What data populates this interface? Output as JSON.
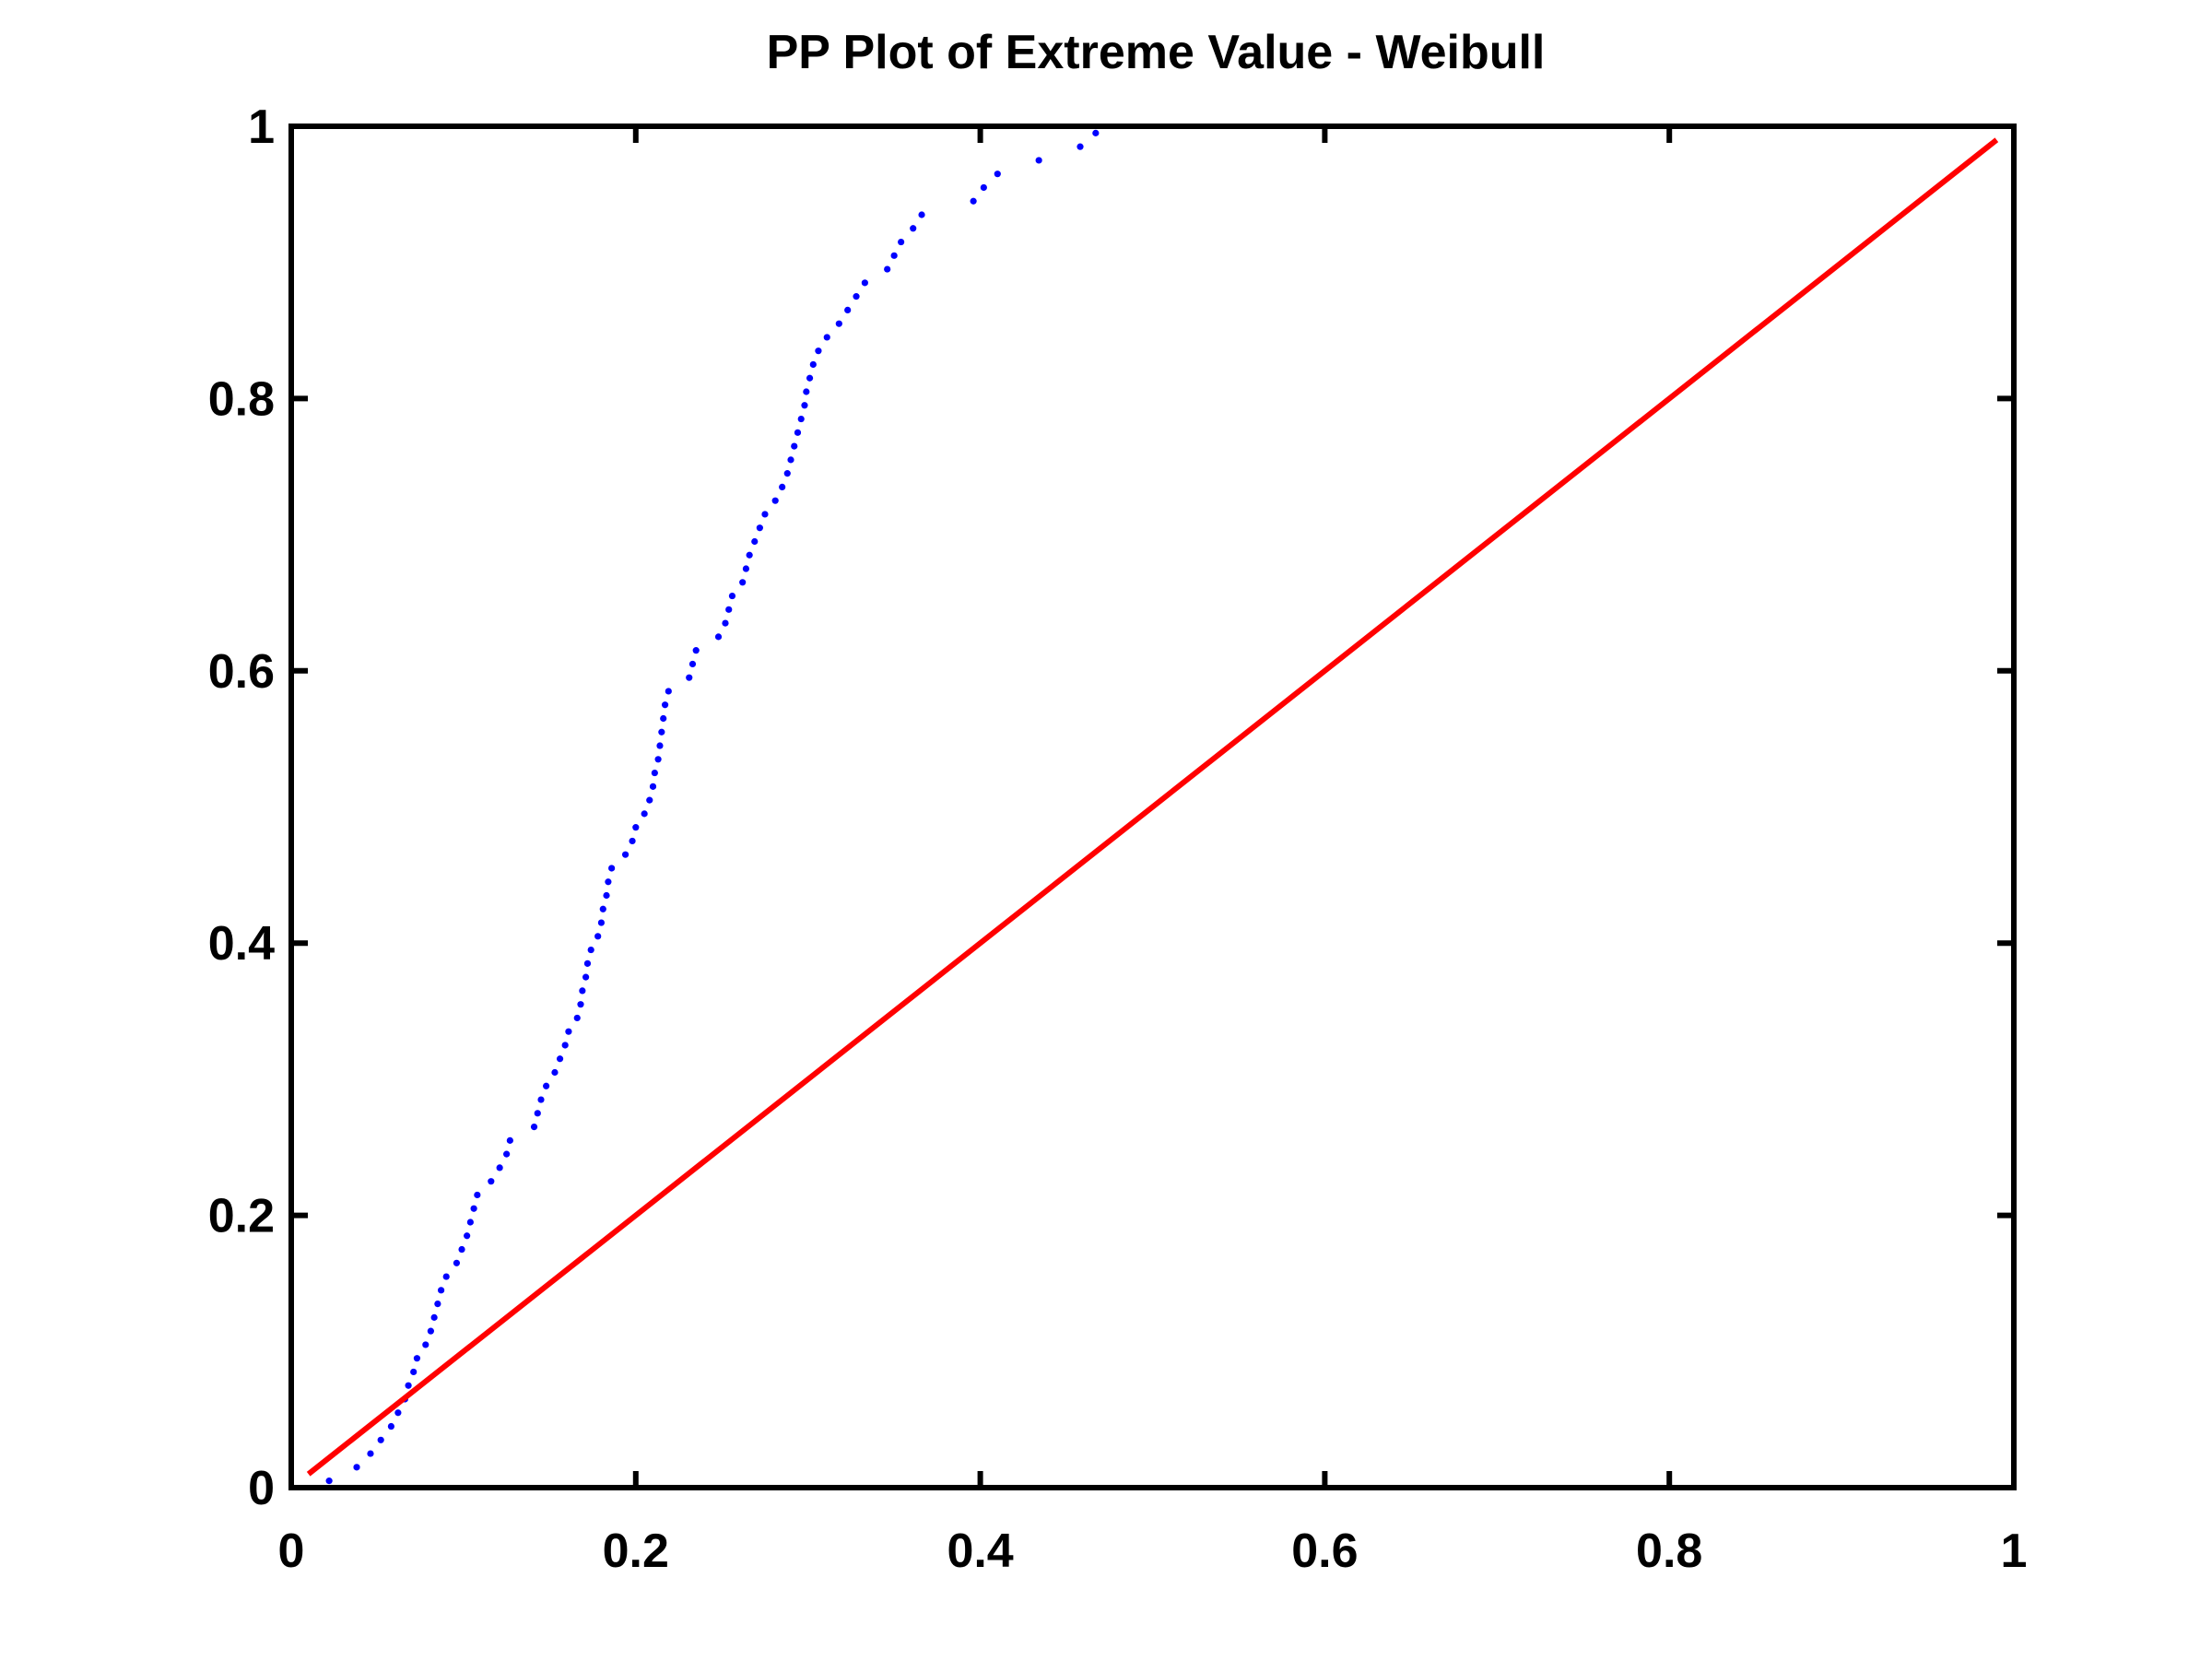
{
  "chart_data": {
    "type": "scatter",
    "title": "PP Plot of Extreme Value - Weibull",
    "xlabel": "",
    "ylabel": "",
    "xlim": [
      0,
      1
    ],
    "ylim": [
      0,
      1
    ],
    "x_ticks": [
      "0",
      "0.2",
      "0.4",
      "0.6",
      "0.8",
      "1"
    ],
    "y_ticks": [
      "0",
      "0.2",
      "0.4",
      "0.6",
      "0.8",
      "1"
    ],
    "grid": false,
    "legend": "none",
    "series": [
      {
        "marker": "dot",
        "color": "#0000ff",
        "points": [
          [
            0.022,
            0.005
          ],
          [
            0.038,
            0.015
          ],
          [
            0.046,
            0.025
          ],
          [
            0.052,
            0.035
          ],
          [
            0.058,
            0.045
          ],
          [
            0.062,
            0.055
          ],
          [
            0.066,
            0.065
          ],
          [
            0.068,
            0.075
          ],
          [
            0.071,
            0.085
          ],
          [
            0.073,
            0.095
          ],
          [
            0.078,
            0.105
          ],
          [
            0.081,
            0.115
          ],
          [
            0.083,
            0.125
          ],
          [
            0.085,
            0.135
          ],
          [
            0.087,
            0.145
          ],
          [
            0.09,
            0.155
          ],
          [
            0.096,
            0.165
          ],
          [
            0.099,
            0.175
          ],
          [
            0.102,
            0.185
          ],
          [
            0.104,
            0.195
          ],
          [
            0.106,
            0.205
          ],
          [
            0.108,
            0.215
          ],
          [
            0.116,
            0.225
          ],
          [
            0.121,
            0.235
          ],
          [
            0.125,
            0.245
          ],
          [
            0.127,
            0.255
          ],
          [
            0.141,
            0.265
          ],
          [
            0.143,
            0.275
          ],
          [
            0.145,
            0.285
          ],
          [
            0.148,
            0.295
          ],
          [
            0.153,
            0.305
          ],
          [
            0.156,
            0.315
          ],
          [
            0.159,
            0.325
          ],
          [
            0.161,
            0.335
          ],
          [
            0.166,
            0.345
          ],
          [
            0.168,
            0.355
          ],
          [
            0.169,
            0.365
          ],
          [
            0.171,
            0.375
          ],
          [
            0.172,
            0.385
          ],
          [
            0.174,
            0.395
          ],
          [
            0.178,
            0.405
          ],
          [
            0.18,
            0.415
          ],
          [
            0.181,
            0.425
          ],
          [
            0.183,
            0.435
          ],
          [
            0.184,
            0.445
          ],
          [
            0.186,
            0.455
          ],
          [
            0.194,
            0.465
          ],
          [
            0.198,
            0.475
          ],
          [
            0.2,
            0.485
          ],
          [
            0.205,
            0.495
          ],
          [
            0.208,
            0.505
          ],
          [
            0.21,
            0.515
          ],
          [
            0.211,
            0.525
          ],
          [
            0.213,
            0.535
          ],
          [
            0.214,
            0.545
          ],
          [
            0.215,
            0.555
          ],
          [
            0.216,
            0.565
          ],
          [
            0.217,
            0.575
          ],
          [
            0.219,
            0.585
          ],
          [
            0.231,
            0.595
          ],
          [
            0.233,
            0.605
          ],
          [
            0.235,
            0.615
          ],
          [
            0.248,
            0.625
          ],
          [
            0.252,
            0.635
          ],
          [
            0.254,
            0.645
          ],
          [
            0.256,
            0.655
          ],
          [
            0.262,
            0.665
          ],
          [
            0.264,
            0.675
          ],
          [
            0.266,
            0.685
          ],
          [
            0.269,
            0.695
          ],
          [
            0.272,
            0.705
          ],
          [
            0.275,
            0.715
          ],
          [
            0.281,
            0.725
          ],
          [
            0.285,
            0.735
          ],
          [
            0.288,
            0.745
          ],
          [
            0.29,
            0.755
          ],
          [
            0.292,
            0.765
          ],
          [
            0.294,
            0.775
          ],
          [
            0.296,
            0.785
          ],
          [
            0.298,
            0.795
          ],
          [
            0.299,
            0.805
          ],
          [
            0.301,
            0.815
          ],
          [
            0.303,
            0.825
          ],
          [
            0.306,
            0.835
          ],
          [
            0.311,
            0.845
          ],
          [
            0.318,
            0.855
          ],
          [
            0.323,
            0.865
          ],
          [
            0.328,
            0.875
          ],
          [
            0.333,
            0.885
          ],
          [
            0.346,
            0.895
          ],
          [
            0.35,
            0.905
          ],
          [
            0.354,
            0.915
          ],
          [
            0.361,
            0.925
          ],
          [
            0.366,
            0.935
          ],
          [
            0.396,
            0.945
          ],
          [
            0.402,
            0.955
          ],
          [
            0.41,
            0.965
          ],
          [
            0.434,
            0.975
          ],
          [
            0.458,
            0.985
          ],
          [
            0.467,
            0.995
          ]
        ]
      },
      {
        "marker": "line",
        "color": "#ff0000",
        "points": [
          [
            0.01,
            0.01
          ],
          [
            0.99,
            0.99
          ]
        ]
      }
    ]
  }
}
